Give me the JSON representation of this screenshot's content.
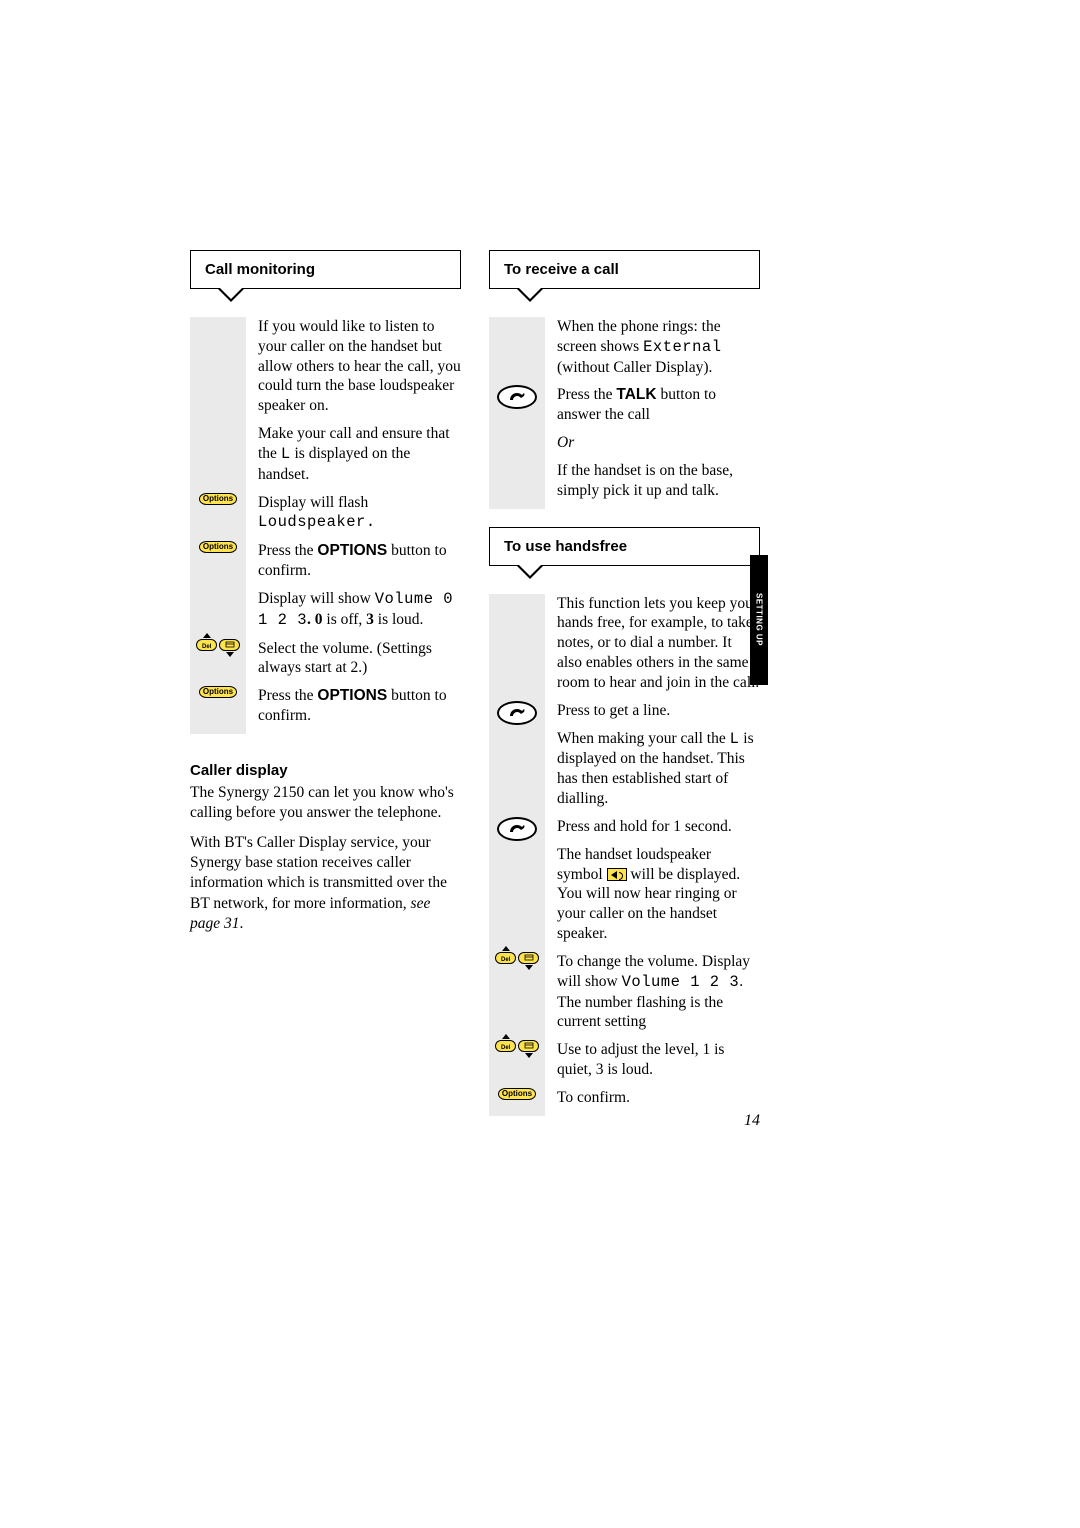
{
  "page_number": "14",
  "side_tab": "SETTING UP",
  "left": {
    "callout1": "Call monitoring",
    "steps": [
      {
        "icon": null,
        "text": "If you would like to listen to your caller on the handset but allow others to hear the call, you could turn the base loudspeaker speaker on."
      },
      {
        "icon": null,
        "html": "Make your call and ensure that the <span class='mono'>L</span> is displayed on the handset."
      },
      {
        "icon": "options",
        "html": "Display will flash <span class='mono'>Loudspeaker.</span>"
      },
      {
        "icon": "options",
        "html": "Press the <span class='sans-bold'>OPTIONS</span> button to confirm."
      },
      {
        "icon": null,
        "html": "Display will show <span class='mono'>Volume 0 1 2 3</span><b>.</b> <b>0</b> is off, <b>3</b> is loud."
      },
      {
        "icon": "nav",
        "text": "Select the volume.  (Settings always start at 2.)"
      },
      {
        "icon": "options",
        "html": "Press the <span class='sans-bold'>OPTIONS</span> button to confirm."
      }
    ],
    "section_heading": "Caller display",
    "p1": "The Synergy 2150 can let you know who's calling before you answer the telephone.",
    "p2_html": "With BT's Caller Display service, your Synergy base station receives caller information which is transmitted over the BT network, for more information, <em>see page 31</em>."
  },
  "right": {
    "callout1": "To receive a call",
    "r1": [
      {
        "icon": null,
        "html": "When the phone rings: the screen shows <span class='mono'>External</span> (without Caller Display)."
      },
      {
        "icon": "talk",
        "html": "Press the <span class='sans-bold'>TALK</span> button to answer the call"
      },
      {
        "icon": null,
        "html": "<em>Or</em>"
      },
      {
        "icon": null,
        "text": "If the handset is on the base, simply pick it up and talk."
      }
    ],
    "callout2": "To use handsfree",
    "r2": [
      {
        "icon": null,
        "text": "This function lets you keep your hands free, for example, to take notes, or to dial a number. It also enables others in the same room to hear and join in the call."
      },
      {
        "icon": "talk",
        "text": "Press to get a line."
      },
      {
        "icon": null,
        "html": "When making your call the <span class='mono'>L</span> is displayed on the handset. This has then established start of dialling."
      },
      {
        "icon": "talk",
        "text": "Press and hold for 1 second."
      },
      {
        "icon": null,
        "html": "The handset loudspeaker symbol <span class='inline-speaker'></span> will be displayed. You will now hear ringing or your caller on the handset speaker."
      },
      {
        "icon": "nav",
        "html": "To change the volume. Display will show <span class='mono'>Volume 1 2 3</span>. The number flashing is the current setting"
      },
      {
        "icon": "nav",
        "text": "Use to adjust the level, 1 is quiet, 3 is loud."
      },
      {
        "icon": "options",
        "text": "To confirm."
      }
    ]
  },
  "colors": {
    "yellow": "#ffe34d",
    "grey_strip": "#eaeaea",
    "black": "#000000",
    "white": "#ffffff"
  }
}
